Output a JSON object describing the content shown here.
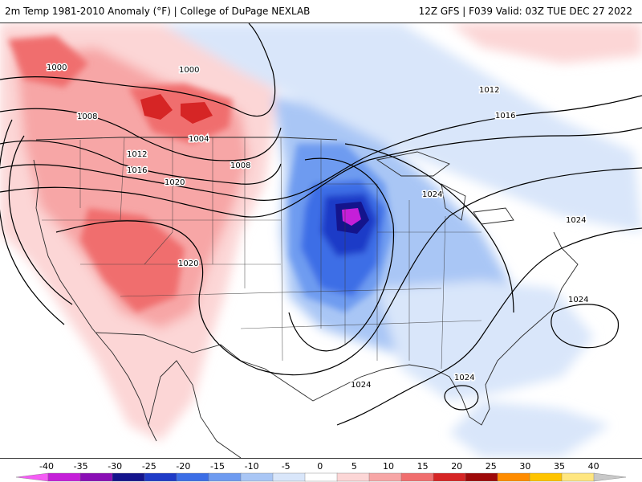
{
  "header": {
    "left": "2m Temp 1981-2010 Anomaly (°F) | College of DuPage NEXLAB",
    "right": "12Z GFS | F039 Valid: 03Z TUE DEC 27 2022"
  },
  "isobar_labels": [
    "1000",
    "1000",
    "1008",
    "1004",
    "1012",
    "1016",
    "1008",
    "1020",
    "1020",
    "1012",
    "1016",
    "1024",
    "1024",
    "1024",
    "1024",
    "1024"
  ],
  "legend": {
    "ticks": [
      "-40",
      "-35",
      "-30",
      "-25",
      "-20",
      "-15",
      "-10",
      "-5",
      "0",
      "5",
      "10",
      "15",
      "20",
      "25",
      "30",
      "35",
      "40"
    ],
    "colors": [
      "#f55cf5",
      "#c51fd9",
      "#8a0fb5",
      "#14148c",
      "#1f3bc7",
      "#3c6ee6",
      "#6e9bf0",
      "#a9c6f5",
      "#d9e6fa",
      "#ffffff",
      "#fcd6d6",
      "#f7a6a6",
      "#f06e6e",
      "#d62525",
      "#9e0a0a",
      "#ff8c00",
      "#ffc400",
      "#ffe680",
      "#c8c8c8"
    ]
  }
}
